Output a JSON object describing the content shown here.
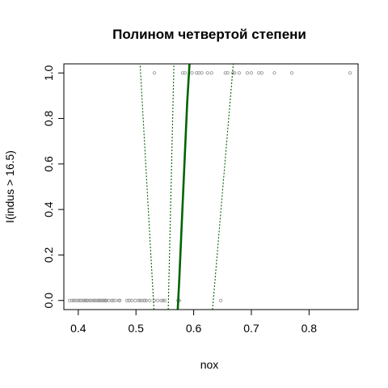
{
  "chart_data": {
    "type": "scatter",
    "title": "Полином четвертой степени",
    "xlabel": "nox",
    "ylabel": "I(indus > 16.5)",
    "xlim": [
      0.375,
      0.885
    ],
    "ylim": [
      -0.04,
      1.04
    ],
    "x_ticks": [
      0.4,
      0.5,
      0.6,
      0.7,
      0.8
    ],
    "x_tick_labels": [
      "0.4",
      "0.5",
      "0.6",
      "0.7",
      "0.8"
    ],
    "y_ticks": [
      0.0,
      0.2,
      0.4,
      0.6,
      0.8,
      1.0
    ],
    "y_tick_labels": [
      "0.0",
      "0.2",
      "0.4",
      "0.6",
      "0.8",
      "1.0"
    ],
    "grid": false,
    "colors": {
      "points": "#999999",
      "fit": "#006400",
      "band": "#006400"
    },
    "series": [
      {
        "kind": "points",
        "x": [
          0.385,
          0.389,
          0.392,
          0.394,
          0.398,
          0.401,
          0.404,
          0.405,
          0.409,
          0.411,
          0.413,
          0.415,
          0.416,
          0.42,
          0.422,
          0.426,
          0.428,
          0.429,
          0.433,
          0.435,
          0.437,
          0.438,
          0.439,
          0.442,
          0.443,
          0.445,
          0.447,
          0.448,
          0.449,
          0.453,
          0.458,
          0.46,
          0.464,
          0.47,
          0.472,
          0.484,
          0.488,
          0.489,
          0.493,
          0.499,
          0.504,
          0.507,
          0.51,
          0.514,
          0.515,
          0.518,
          0.524,
          0.532,
          0.538,
          0.544,
          0.547,
          0.55,
          0.573,
          0.575,
          0.647,
          0.532,
          0.581,
          0.585,
          0.597,
          0.605,
          0.609,
          0.614,
          0.624,
          0.631,
          0.655,
          0.659,
          0.668,
          0.671,
          0.679,
          0.693,
          0.7,
          0.713,
          0.718,
          0.74,
          0.77,
          0.871
        ],
        "y": [
          0,
          0,
          0,
          0,
          0,
          0,
          0,
          0,
          0,
          0,
          0,
          0,
          0,
          0,
          0,
          0,
          0,
          0,
          0,
          0,
          0,
          0,
          0,
          0,
          0,
          0,
          0,
          0,
          0,
          0,
          0,
          0,
          0,
          0,
          0,
          0,
          0,
          0,
          0,
          0,
          0,
          0,
          0,
          0,
          0,
          0,
          0,
          0,
          0,
          0,
          0,
          0,
          0,
          0,
          0,
          1,
          1,
          1,
          1,
          1,
          1,
          1,
          1,
          1,
          1,
          1,
          1,
          1,
          1,
          1,
          1,
          1,
          1,
          1,
          1,
          1
        ]
      },
      {
        "kind": "fit",
        "x": [
          0.5724,
          0.5752,
          0.5787,
          0.5831,
          0.5888,
          0.5928
        ],
        "y": [
          -0.04,
          0.1,
          0.3,
          0.55,
          0.87,
          1.04
        ]
      },
      {
        "kind": "band",
        "x": [
          0.5312,
          0.5071
        ],
        "y": [
          -0.04,
          1.04
        ]
      },
      {
        "kind": "band",
        "x": [
          0.5559,
          0.5658
        ],
        "y": [
          -0.04,
          1.04
        ]
      },
      {
        "kind": "band",
        "x": [
          0.6327,
          0.6687
        ],
        "y": [
          -0.04,
          1.04
        ]
      }
    ]
  }
}
